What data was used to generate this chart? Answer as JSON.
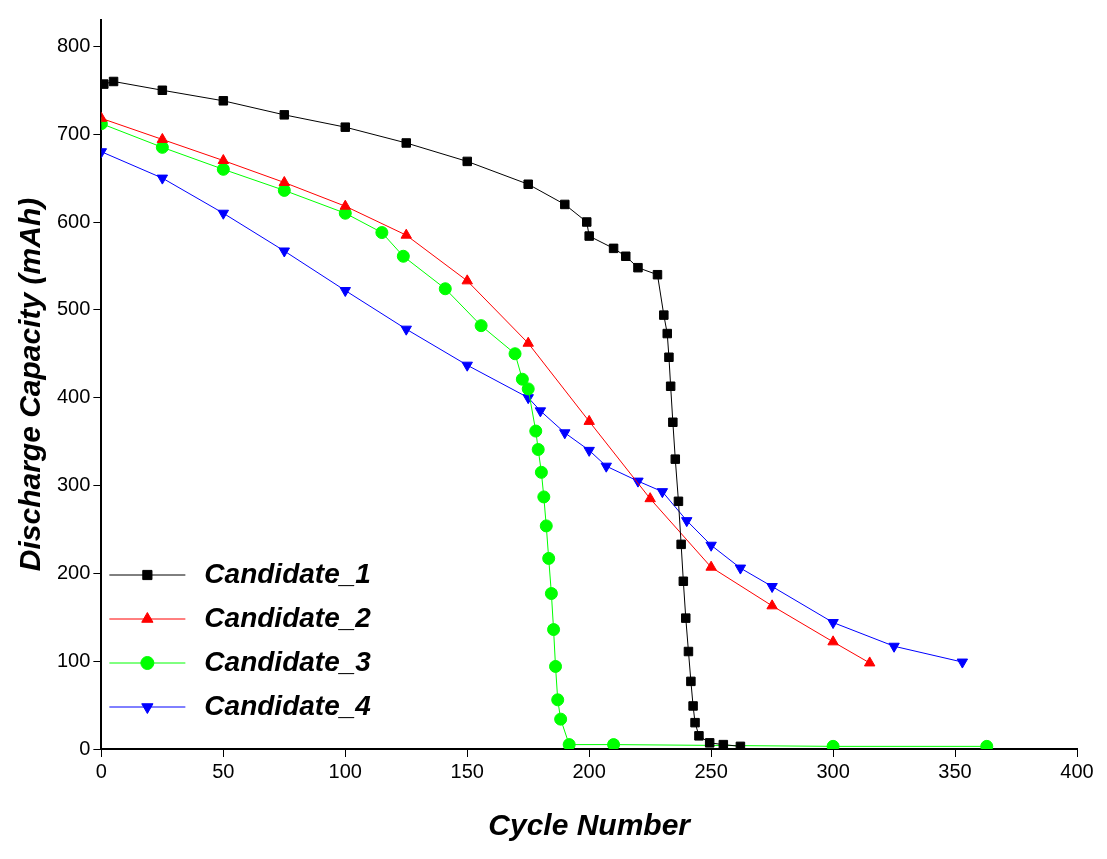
{
  "chart_data": {
    "type": "line",
    "xlabel": "Cycle Number",
    "ylabel": "Discharge Capacity (mAh)",
    "xlim": [
      0,
      400
    ],
    "xticks": [
      0,
      50,
      100,
      150,
      200,
      250,
      300,
      350,
      400
    ],
    "ylim": [
      0,
      830
    ],
    "yticks": [
      0,
      100,
      200,
      300,
      400,
      500,
      600,
      700,
      800
    ],
    "grid": false,
    "legend": "bottom left",
    "series": [
      {
        "name": "Candidate_1",
        "color": "#000000",
        "marker": "square",
        "x": [
          1,
          5,
          25,
          50,
          75,
          100,
          125,
          150,
          175,
          190,
          199,
          200,
          210,
          215,
          220,
          228,
          230.6,
          232,
          232.7,
          233.4,
          234.3,
          235.3,
          236.6,
          237.7,
          238.6,
          239.6,
          240.7,
          241.7,
          242.6,
          243.4,
          245,
          249.4,
          255,
          262
        ],
        "values": [
          757,
          760,
          750,
          738,
          722,
          708,
          690,
          669,
          643,
          620,
          600,
          584,
          570,
          561,
          548,
          540,
          494,
          473,
          446,
          413,
          372,
          330,
          282,
          233,
          191,
          149,
          111,
          77,
          49,
          30,
          15,
          7,
          5,
          3
        ]
      },
      {
        "name": "Candidate_2",
        "color": "#ff0000",
        "marker": "triangle",
        "x": [
          0,
          25,
          50,
          75,
          100,
          125,
          150,
          175,
          200,
          225,
          250,
          275,
          300,
          315
        ],
        "values": [
          718,
          694,
          670,
          645,
          618,
          585,
          533,
          462,
          373,
          285,
          207,
          163,
          122,
          98
        ]
      },
      {
        "name": "Candidate_3",
        "color": "#00ff00",
        "marker": "circle",
        "x": [
          0,
          25,
          50,
          75,
          100,
          115,
          123.8,
          141,
          155.7,
          169.6,
          172.6,
          175,
          178.1,
          179.1,
          180.4,
          181.4,
          182.4,
          183.4,
          184.5,
          185.4,
          186.2,
          187.1,
          188.3,
          191.8,
          210,
          300,
          363
        ],
        "values": [
          712,
          685,
          660,
          636,
          610,
          588,
          561,
          524,
          482,
          450,
          421,
          410,
          362,
          341,
          315,
          287,
          254,
          217,
          177,
          136,
          94,
          56,
          34,
          5,
          5,
          3,
          3
        ]
      },
      {
        "name": "Candidate_4",
        "color": "#0000ff",
        "marker": "triangle-down",
        "x": [
          0,
          25,
          50,
          75,
          100,
          125,
          150,
          175,
          180,
          190,
          200,
          207,
          220,
          230,
          240,
          250,
          262,
          275,
          300,
          325,
          353
        ],
        "values": [
          680,
          650,
          610,
          567,
          522,
          478,
          437,
          400,
          385,
          360,
          340,
          322,
          305,
          293,
          260,
          232,
          206,
          185,
          144,
          117,
          99
        ]
      }
    ]
  }
}
